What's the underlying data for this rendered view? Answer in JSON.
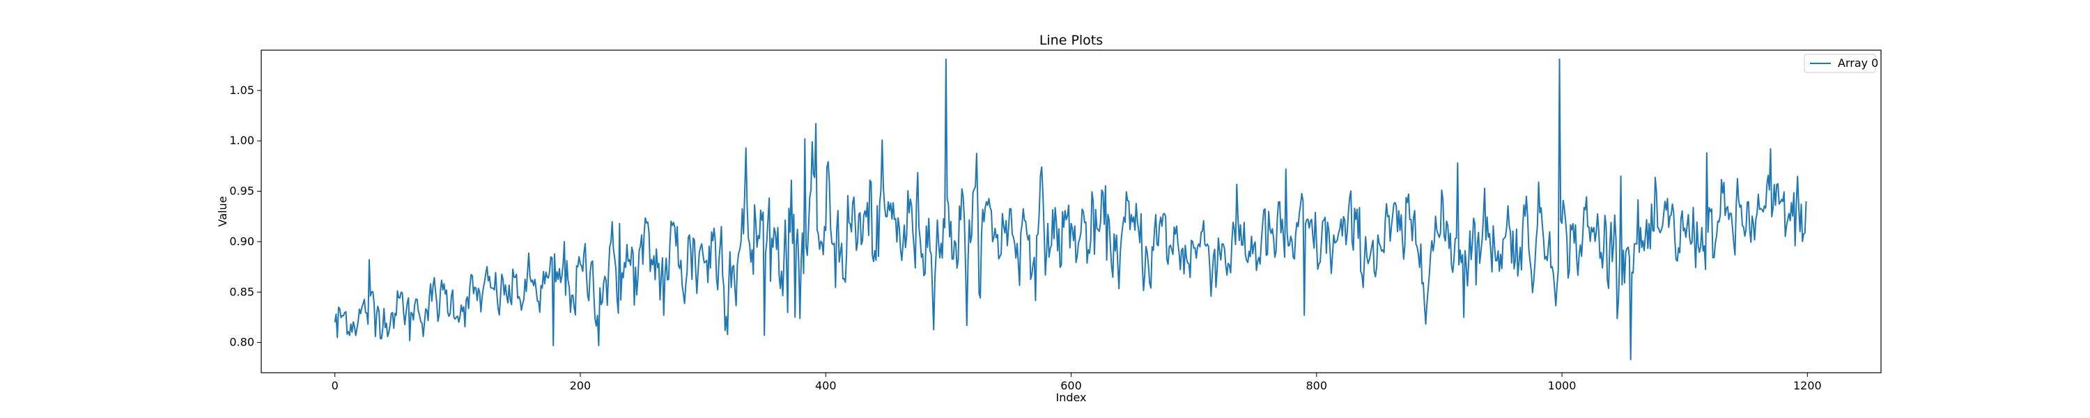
{
  "chart_data": {
    "type": "line",
    "title": "Line Plots",
    "xlabel": "Index",
    "ylabel": "Value",
    "xlim": [
      -60,
      1260
    ],
    "ylim": [
      0.77,
      1.09
    ],
    "xticks": [
      0,
      200,
      400,
      600,
      800,
      1000,
      1200
    ],
    "yticks": [
      0.8,
      0.85,
      0.9,
      0.95,
      1.0,
      1.05
    ],
    "xtick_labels": [
      "0",
      "200",
      "400",
      "600",
      "800",
      "1000",
      "1200"
    ],
    "ytick_labels": [
      "0.80",
      "0.85",
      "0.90",
      "0.95",
      "1.00",
      "1.05"
    ],
    "grid": false,
    "legend": {
      "position": "top-right"
    },
    "series": [
      {
        "name": "Array 0",
        "color": "#1f77b4",
        "n_points": 1200,
        "trend": [
          [
            0,
            0.82
          ],
          [
            10,
            0.825
          ],
          [
            30,
            0.83
          ],
          [
            60,
            0.835
          ],
          [
            100,
            0.842
          ],
          [
            150,
            0.85
          ],
          [
            200,
            0.86
          ],
          [
            250,
            0.875
          ],
          [
            300,
            0.89
          ],
          [
            350,
            0.905
          ],
          [
            400,
            0.91
          ],
          [
            450,
            0.912
          ],
          [
            500,
            0.915
          ],
          [
            560,
            0.912
          ],
          [
            620,
            0.905
          ],
          [
            700,
            0.895
          ],
          [
            780,
            0.898
          ],
          [
            860,
            0.9
          ],
          [
            940,
            0.905
          ],
          [
            1000,
            0.908
          ],
          [
            1060,
            0.895
          ],
          [
            1100,
            0.905
          ],
          [
            1150,
            0.92
          ],
          [
            1199,
            0.93
          ]
        ],
        "noise": [
          [
            0,
            0.012
          ],
          [
            150,
            0.015
          ],
          [
            250,
            0.025
          ],
          [
            350,
            0.04
          ],
          [
            450,
            0.03
          ],
          [
            600,
            0.025
          ],
          [
            800,
            0.022
          ],
          [
            1000,
            0.025
          ],
          [
            1199,
            0.02
          ]
        ],
        "features": [
          {
            "x": 0,
            "y": 0.82
          },
          {
            "x": 2,
            "y": 0.805
          },
          {
            "x": 28,
            "y": 0.882
          },
          {
            "x": 33,
            "y": 0.806
          },
          {
            "x": 61,
            "y": 0.802
          },
          {
            "x": 178,
            "y": 0.797
          },
          {
            "x": 187,
            "y": 0.9
          },
          {
            "x": 215,
            "y": 0.797
          },
          {
            "x": 232,
            "y": 0.918
          },
          {
            "x": 268,
            "y": 0.827
          },
          {
            "x": 335,
            "y": 0.993
          },
          {
            "x": 375,
            "y": 0.825
          },
          {
            "x": 383,
            "y": 1.002
          },
          {
            "x": 498,
            "y": 1.081
          },
          {
            "x": 502,
            "y": 0.92
          },
          {
            "x": 515,
            "y": 0.817
          },
          {
            "x": 775,
            "y": 0.972
          },
          {
            "x": 790,
            "y": 0.827
          },
          {
            "x": 915,
            "y": 0.978
          },
          {
            "x": 920,
            "y": 0.825
          },
          {
            "x": 998,
            "y": 1.081
          },
          {
            "x": 1003,
            "y": 0.92
          },
          {
            "x": 1048,
            "y": 0.965
          },
          {
            "x": 1056,
            "y": 0.783
          },
          {
            "x": 1118,
            "y": 0.988
          },
          {
            "x": 1170,
            "y": 0.992
          },
          {
            "x": 1190,
            "y": 0.896
          },
          {
            "x": 1199,
            "y": 0.94
          }
        ]
      }
    ]
  }
}
